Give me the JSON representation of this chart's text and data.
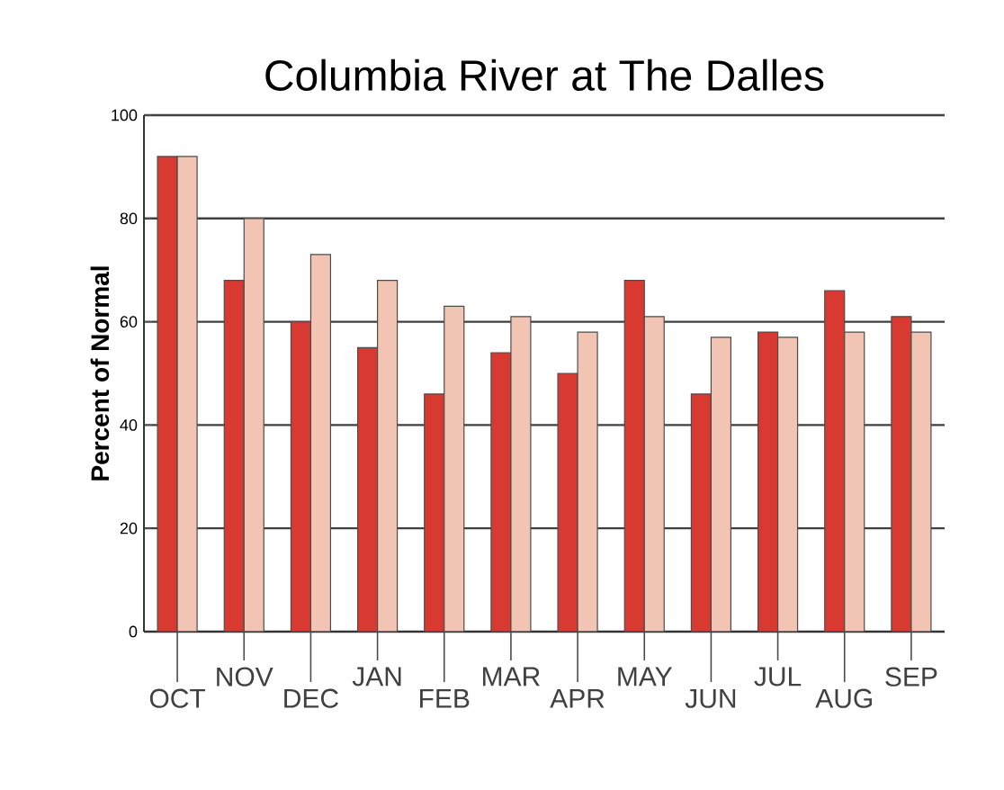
{
  "chart_data": {
    "type": "bar",
    "title": "Columbia River at The Dalles",
    "ylabel": "Percent of Normal",
    "categories": [
      "OCT",
      "NOV",
      "DEC",
      "JAN",
      "FEB",
      "MAR",
      "APR",
      "MAY",
      "JUN",
      "JUL",
      "AUG",
      "SEP"
    ],
    "series": [
      {
        "color": "#d83a32",
        "values": [
          92,
          68,
          60,
          55,
          46,
          54,
          50,
          68,
          46,
          58,
          66,
          61
        ]
      },
      {
        "color": "#f2c4b4",
        "values": [
          92,
          80,
          73,
          68,
          63,
          61,
          58,
          61,
          57,
          57,
          58,
          58
        ]
      }
    ],
    "ylim": [
      0,
      100
    ],
    "yticks": [
      0,
      20,
      40,
      60,
      80,
      100
    ],
    "grid": "y"
  }
}
